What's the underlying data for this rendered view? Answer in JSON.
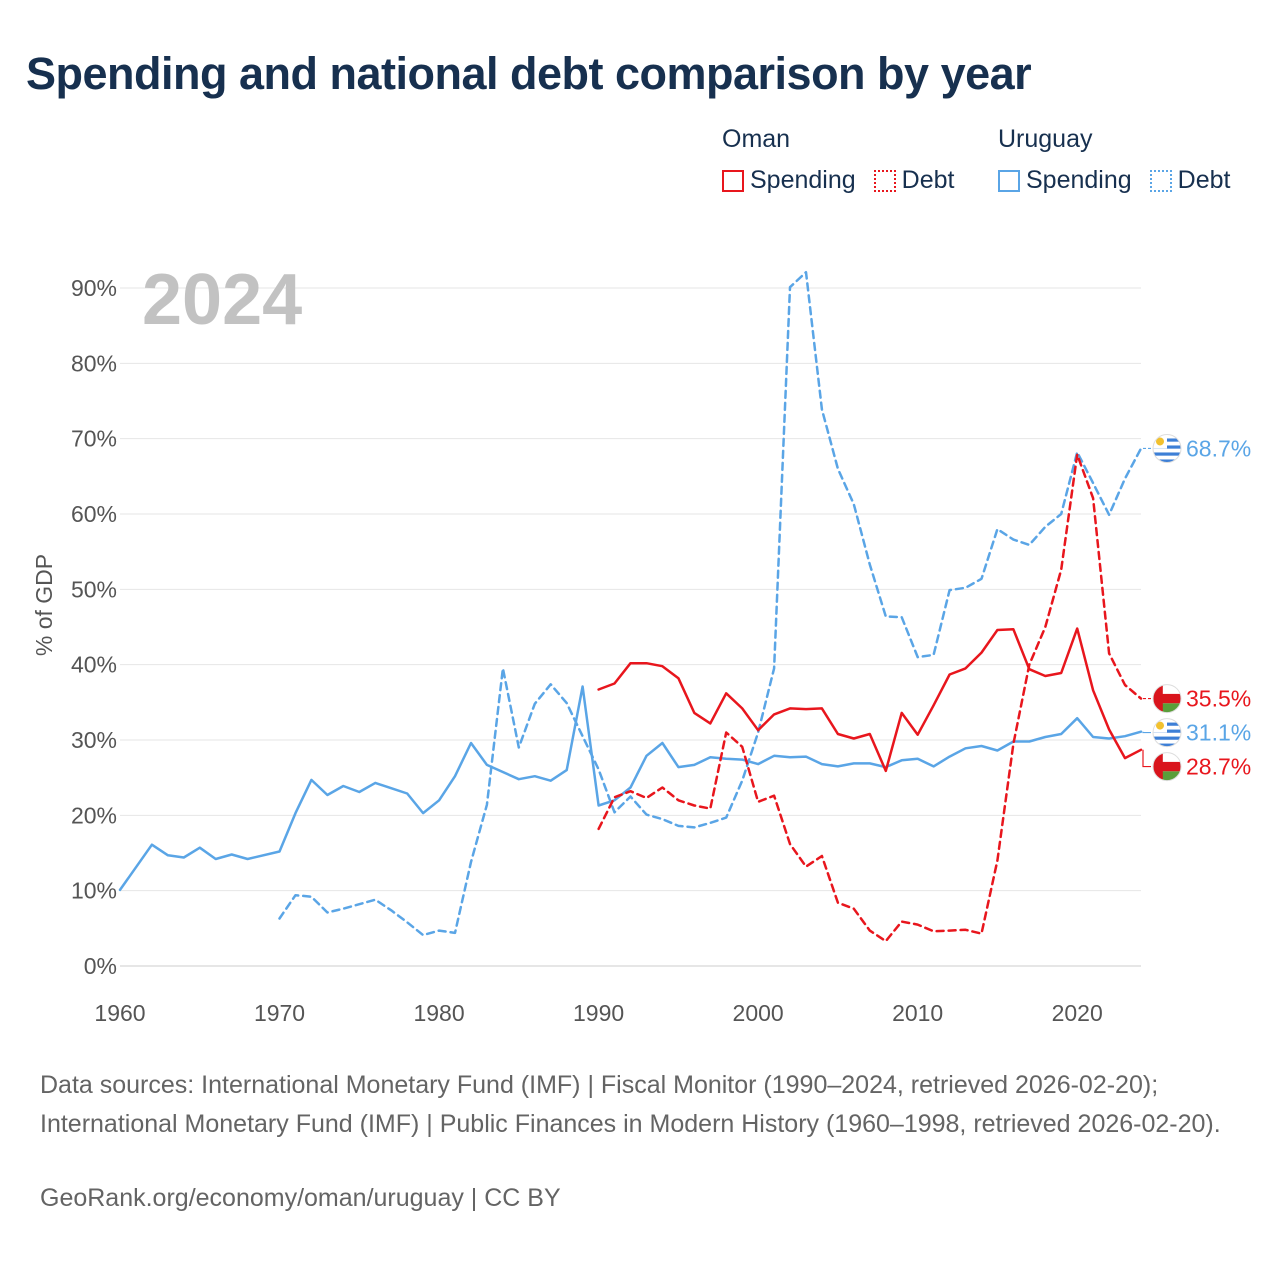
{
  "title": "Spending and national debt comparison by year",
  "legend": {
    "groups": [
      {
        "country": "Oman",
        "color": "#e8161d",
        "spending_label": "Spending",
        "debt_label": "Debt"
      },
      {
        "country": "Uruguay",
        "color": "#5aa5e6",
        "spending_label": "Spending",
        "debt_label": "Debt"
      }
    ]
  },
  "sources": "Data sources: International Monetary Fund (IMF) | Fiscal Monitor (1990–2024, retrieved 2026-02-20); International Monetary Fund (IMF) | Public Finances in Modern History (1960–1998, retrieved 2026-02-20).",
  "credit": "GeoRank.org/economy/oman/uruguay | CC BY",
  "chart_data": {
    "type": "line",
    "title": "Spending and national debt comparison by year",
    "xlabel": "",
    "ylabel": "% of GDP",
    "xlim": [
      1960,
      2024
    ],
    "ylim": [
      0,
      90
    ],
    "x_ticks": [
      "1960",
      "1970",
      "1980",
      "1990",
      "2000",
      "2010",
      "2020"
    ],
    "y_ticks": [
      "0%",
      "10%",
      "20%",
      "30%",
      "40%",
      "50%",
      "60%",
      "70%",
      "80%",
      "90%"
    ],
    "year_label": "2024",
    "series": [
      {
        "name": "Uruguay Spending",
        "country": "Uruguay",
        "measure": "Spending",
        "color": "#5aa5e6",
        "dashed": false,
        "x": [
          1960,
          1962,
          1963,
          1964,
          1965,
          1966,
          1967,
          1968,
          1970,
          1971,
          1972,
          1973,
          1974,
          1975,
          1976,
          1977,
          1978,
          1979,
          1980,
          1981,
          1982,
          1983,
          1985,
          1986,
          1987,
          1988,
          1989,
          1990,
          1991,
          1992,
          1993,
          1994,
          1995,
          1996,
          1997,
          1998,
          1999,
          2000,
          2001,
          2002,
          2003,
          2004,
          2005,
          2006,
          2007,
          2008,
          2009,
          2010,
          2011,
          2012,
          2013,
          2014,
          2015,
          2016,
          2017,
          2018,
          2019,
          2020,
          2021,
          2022,
          2023,
          2024
        ],
        "y": [
          10.1,
          16.1,
          14.7,
          14.4,
          15.7,
          14.2,
          14.8,
          14.2,
          15.2,
          20.3,
          24.7,
          22.7,
          23.9,
          23.1,
          24.3,
          23.6,
          22.9,
          20.3,
          22.0,
          25.2,
          29.6,
          26.7,
          24.8,
          25.2,
          24.6,
          26.0,
          37.1,
          21.3,
          22.0,
          23.7,
          27.9,
          29.6,
          26.4,
          26.7,
          27.7,
          27.5,
          27.4,
          26.8,
          27.9,
          27.7,
          27.8,
          26.8,
          26.5,
          26.9,
          26.9,
          26.4,
          27.3,
          27.5,
          26.5,
          27.8,
          28.9,
          29.2,
          28.6,
          29.8,
          29.8,
          30.4,
          30.8,
          32.9,
          30.4,
          30.2,
          30.5,
          31.1
        ],
        "end_label": "31.1%"
      },
      {
        "name": "Uruguay Debt",
        "country": "Uruguay",
        "measure": "Debt",
        "color": "#5aa5e6",
        "dashed": true,
        "x": [
          1970,
          1971,
          1972,
          1973,
          1974,
          1975,
          1976,
          1977,
          1978,
          1979,
          1980,
          1981,
          1982,
          1983,
          1984,
          1985,
          1986,
          1987,
          1988,
          1989,
          1990,
          1991,
          1992,
          1993,
          1994,
          1995,
          1996,
          1997,
          1998,
          1999,
          2000,
          2001,
          2002,
          2003,
          2004,
          2005,
          2006,
          2007,
          2008,
          2009,
          2010,
          2011,
          2012,
          2013,
          2014,
          2015,
          2016,
          2017,
          2018,
          2019,
          2020,
          2021,
          2022,
          2023,
          2024
        ],
        "y": [
          6.3,
          9.4,
          9.2,
          7.1,
          7.6,
          8.2,
          8.8,
          7.4,
          5.8,
          4.1,
          4.7,
          4.4,
          13.8,
          21.4,
          39.5,
          29.0,
          34.8,
          37.4,
          34.9,
          30.5,
          26.1,
          20.4,
          22.5,
          20.1,
          19.5,
          18.6,
          18.4,
          19.0,
          19.7,
          24.6,
          31.0,
          39.5,
          90.1,
          92.1,
          73.9,
          66.0,
          61.3,
          53.3,
          46.4,
          46.3,
          41.0,
          41.3,
          49.9,
          50.2,
          51.4,
          58.0,
          56.6,
          55.9,
          58.3,
          60.0,
          68.2,
          64.1,
          59.9,
          64.7,
          68.7
        ],
        "end_label": "68.7%"
      },
      {
        "name": "Oman Spending",
        "country": "Oman",
        "measure": "Spending",
        "color": "#e8161d",
        "dashed": false,
        "x": [
          1990,
          1991,
          1992,
          1993,
          1994,
          1995,
          1996,
          1997,
          1998,
          1999,
          2000,
          2001,
          2002,
          2003,
          2004,
          2005,
          2006,
          2007,
          2008,
          2009,
          2010,
          2011,
          2012,
          2013,
          2014,
          2015,
          2016,
          2017,
          2018,
          2019,
          2020,
          2021,
          2022,
          2023,
          2024
        ],
        "y": [
          36.7,
          37.5,
          40.2,
          40.2,
          39.8,
          38.2,
          33.6,
          32.2,
          36.2,
          34.2,
          31.3,
          33.4,
          34.2,
          34.1,
          34.2,
          30.8,
          30.2,
          30.8,
          25.9,
          33.6,
          30.7,
          34.6,
          38.7,
          39.5,
          41.6,
          44.6,
          44.7,
          39.4,
          38.5,
          38.9,
          44.8,
          36.6,
          31.4,
          27.6,
          28.7
        ],
        "end_label": "28.7%"
      },
      {
        "name": "Oman Debt",
        "country": "Oman",
        "measure": "Debt",
        "color": "#e8161d",
        "dashed": true,
        "x": [
          1990,
          1991,
          1992,
          1993,
          1994,
          1995,
          1996,
          1997,
          1998,
          1999,
          2000,
          2001,
          2002,
          2003,
          2004,
          2005,
          2006,
          2007,
          2008,
          2009,
          2010,
          2011,
          2012,
          2013,
          2014,
          2015,
          2016,
          2017,
          2018,
          2019,
          2020,
          2021,
          2022,
          2023,
          2024
        ],
        "y": [
          18.2,
          22.4,
          23.2,
          22.3,
          23.7,
          22.0,
          21.3,
          20.9,
          31.0,
          29.1,
          21.8,
          22.6,
          16.2,
          13.2,
          14.6,
          8.4,
          7.6,
          4.7,
          3.3,
          5.9,
          5.5,
          4.6,
          4.7,
          4.8,
          4.3,
          14.0,
          29.5,
          40.0,
          45.0,
          52.6,
          67.9,
          62.1,
          41.5,
          37.3,
          35.5
        ],
        "end_label": "35.5%"
      }
    ]
  }
}
